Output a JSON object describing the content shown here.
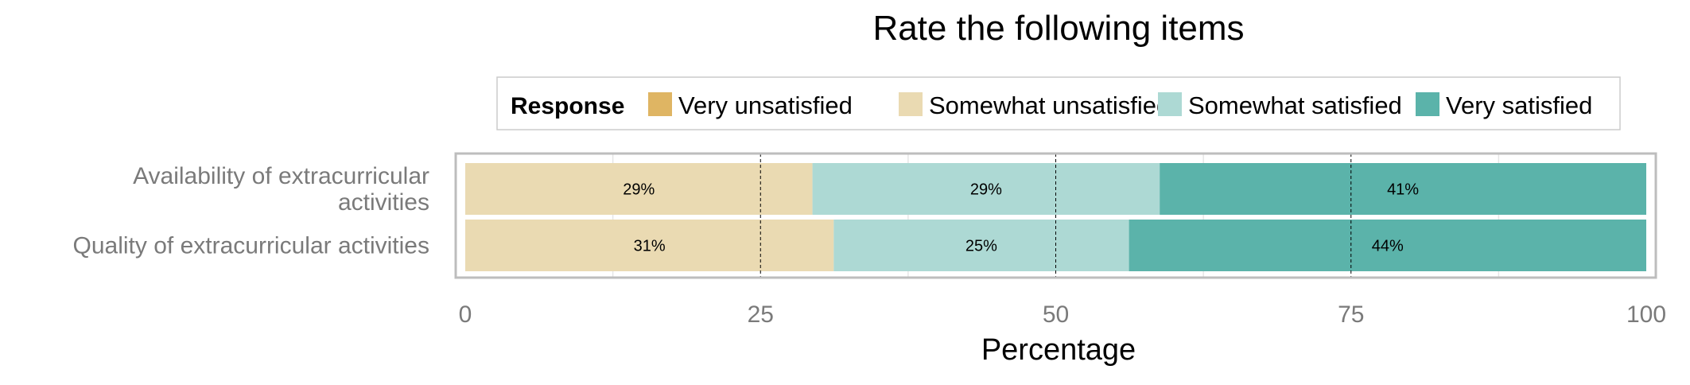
{
  "chart_data": {
    "type": "bar",
    "orientation": "horizontal",
    "stacked": true,
    "title": "Rate the following items",
    "xlabel": "Percentage",
    "ylabel": "",
    "xlim": [
      0,
      100
    ],
    "xticks": [
      0,
      25,
      50,
      75,
      100
    ],
    "grid": true,
    "legend": {
      "title": "Response",
      "placement": "top",
      "entries": [
        "Very unsatisfied",
        "Somewhat unsatisfied",
        "Somewhat satisfied",
        "Very satisfied"
      ]
    },
    "categories": [
      "Availability of extracurricular activities",
      "Quality of extracurricular activities"
    ],
    "category_display_lines": [
      [
        "Availability of extracurricular",
        "activities"
      ],
      [
        "Quality of extracurricular activities"
      ]
    ],
    "series": [
      {
        "name": "Very unsatisfied",
        "color": "#DFB563",
        "values": [
          0,
          0
        ],
        "labels": [
          "",
          ""
        ]
      },
      {
        "name": "Somewhat unsatisfied",
        "color": "#EADAB2",
        "values": [
          29.4,
          31.2
        ],
        "labels": [
          "29%",
          "31%"
        ]
      },
      {
        "name": "Somewhat satisfied",
        "color": "#ADD9D4",
        "values": [
          29.4,
          25.0
        ],
        "labels": [
          "29%",
          "25%"
        ]
      },
      {
        "name": "Very satisfied",
        "color": "#5BB3AA",
        "values": [
          41.2,
          43.8
        ],
        "labels": [
          "41%",
          "44%"
        ]
      }
    ]
  }
}
